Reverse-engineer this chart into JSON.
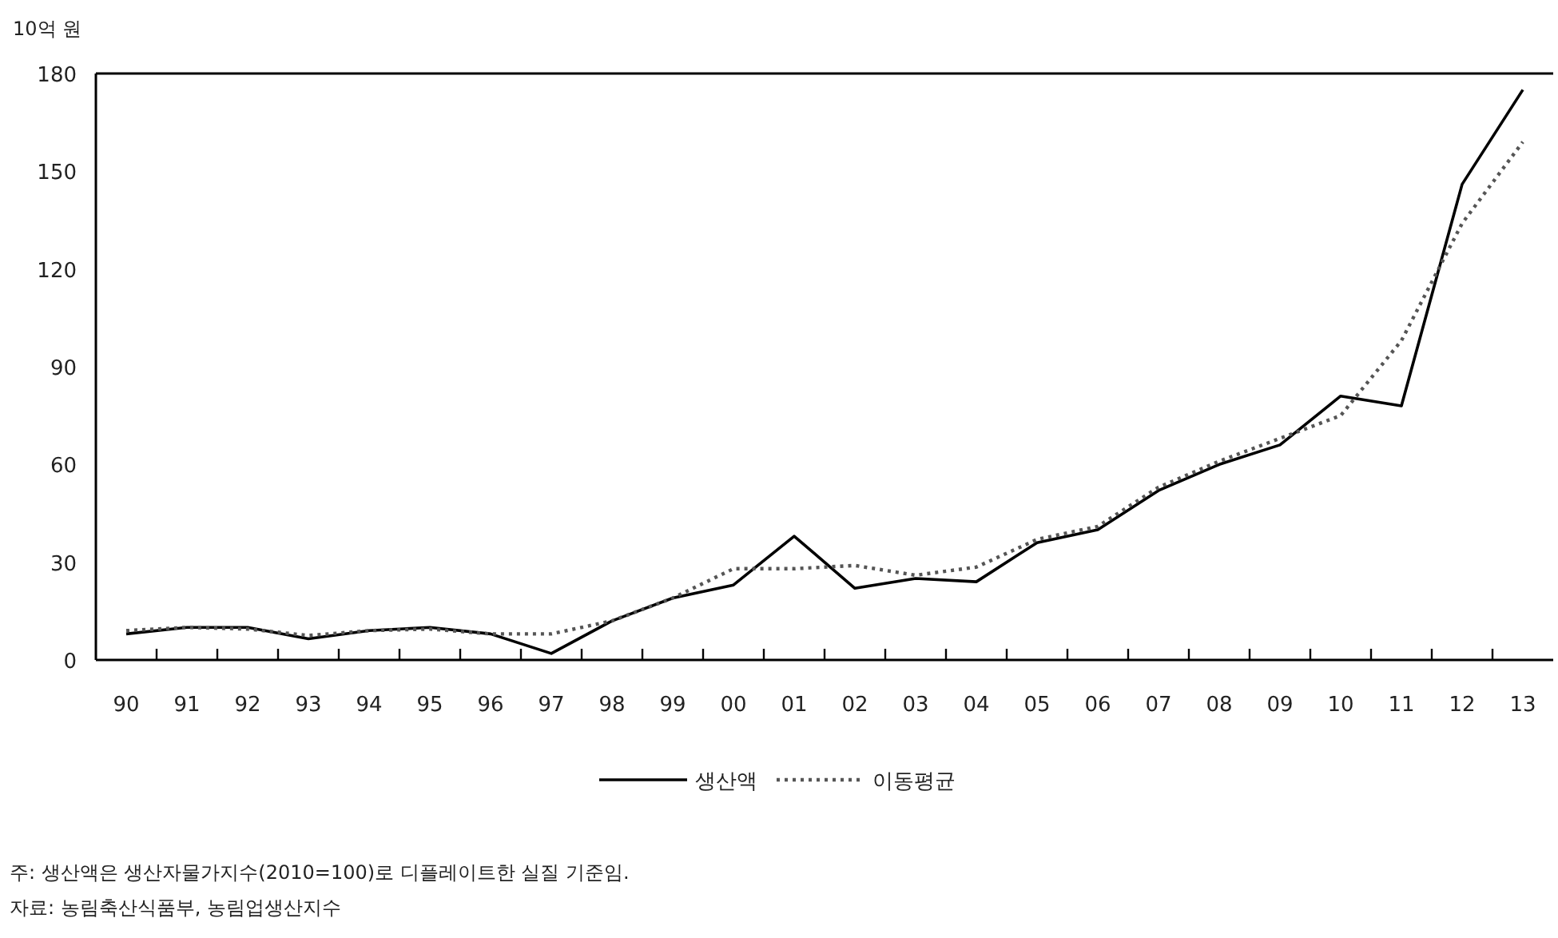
{
  "chart_data": {
    "type": "line",
    "ylabel": "10억 원",
    "categories": [
      "90",
      "91",
      "92",
      "93",
      "94",
      "95",
      "96",
      "97",
      "98",
      "99",
      "00",
      "01",
      "02",
      "03",
      "04",
      "05",
      "06",
      "07",
      "08",
      "09",
      "10",
      "11",
      "12",
      "13"
    ],
    "ylim": [
      0,
      180
    ],
    "yticks": [
      0,
      30,
      60,
      90,
      120,
      150,
      180
    ],
    "series": [
      {
        "name": "생산액",
        "color": "#000000",
        "line_style": "solid",
        "values": [
          8,
          10,
          10,
          6.5,
          9,
          10,
          8,
          2,
          12,
          19,
          23,
          38,
          22,
          25,
          24,
          36,
          40,
          52,
          60,
          66,
          81,
          78,
          146,
          175
        ]
      },
      {
        "name": "이동평균",
        "color": "#555555",
        "line_style": "dotted",
        "values": [
          9,
          10,
          9.5,
          7.5,
          9,
          9.5,
          8,
          8,
          12,
          19,
          28,
          28,
          29,
          26,
          28.5,
          37,
          41,
          53,
          61,
          68,
          75,
          98,
          134,
          159
        ]
      }
    ],
    "legend": "bottom",
    "annotations": [
      "주: 생산액은 생산자물가지수(2010=100)로 디플레이트한 실질 기준임.",
      "자료: 농림축산식품부, 농림업생산지수"
    ]
  }
}
